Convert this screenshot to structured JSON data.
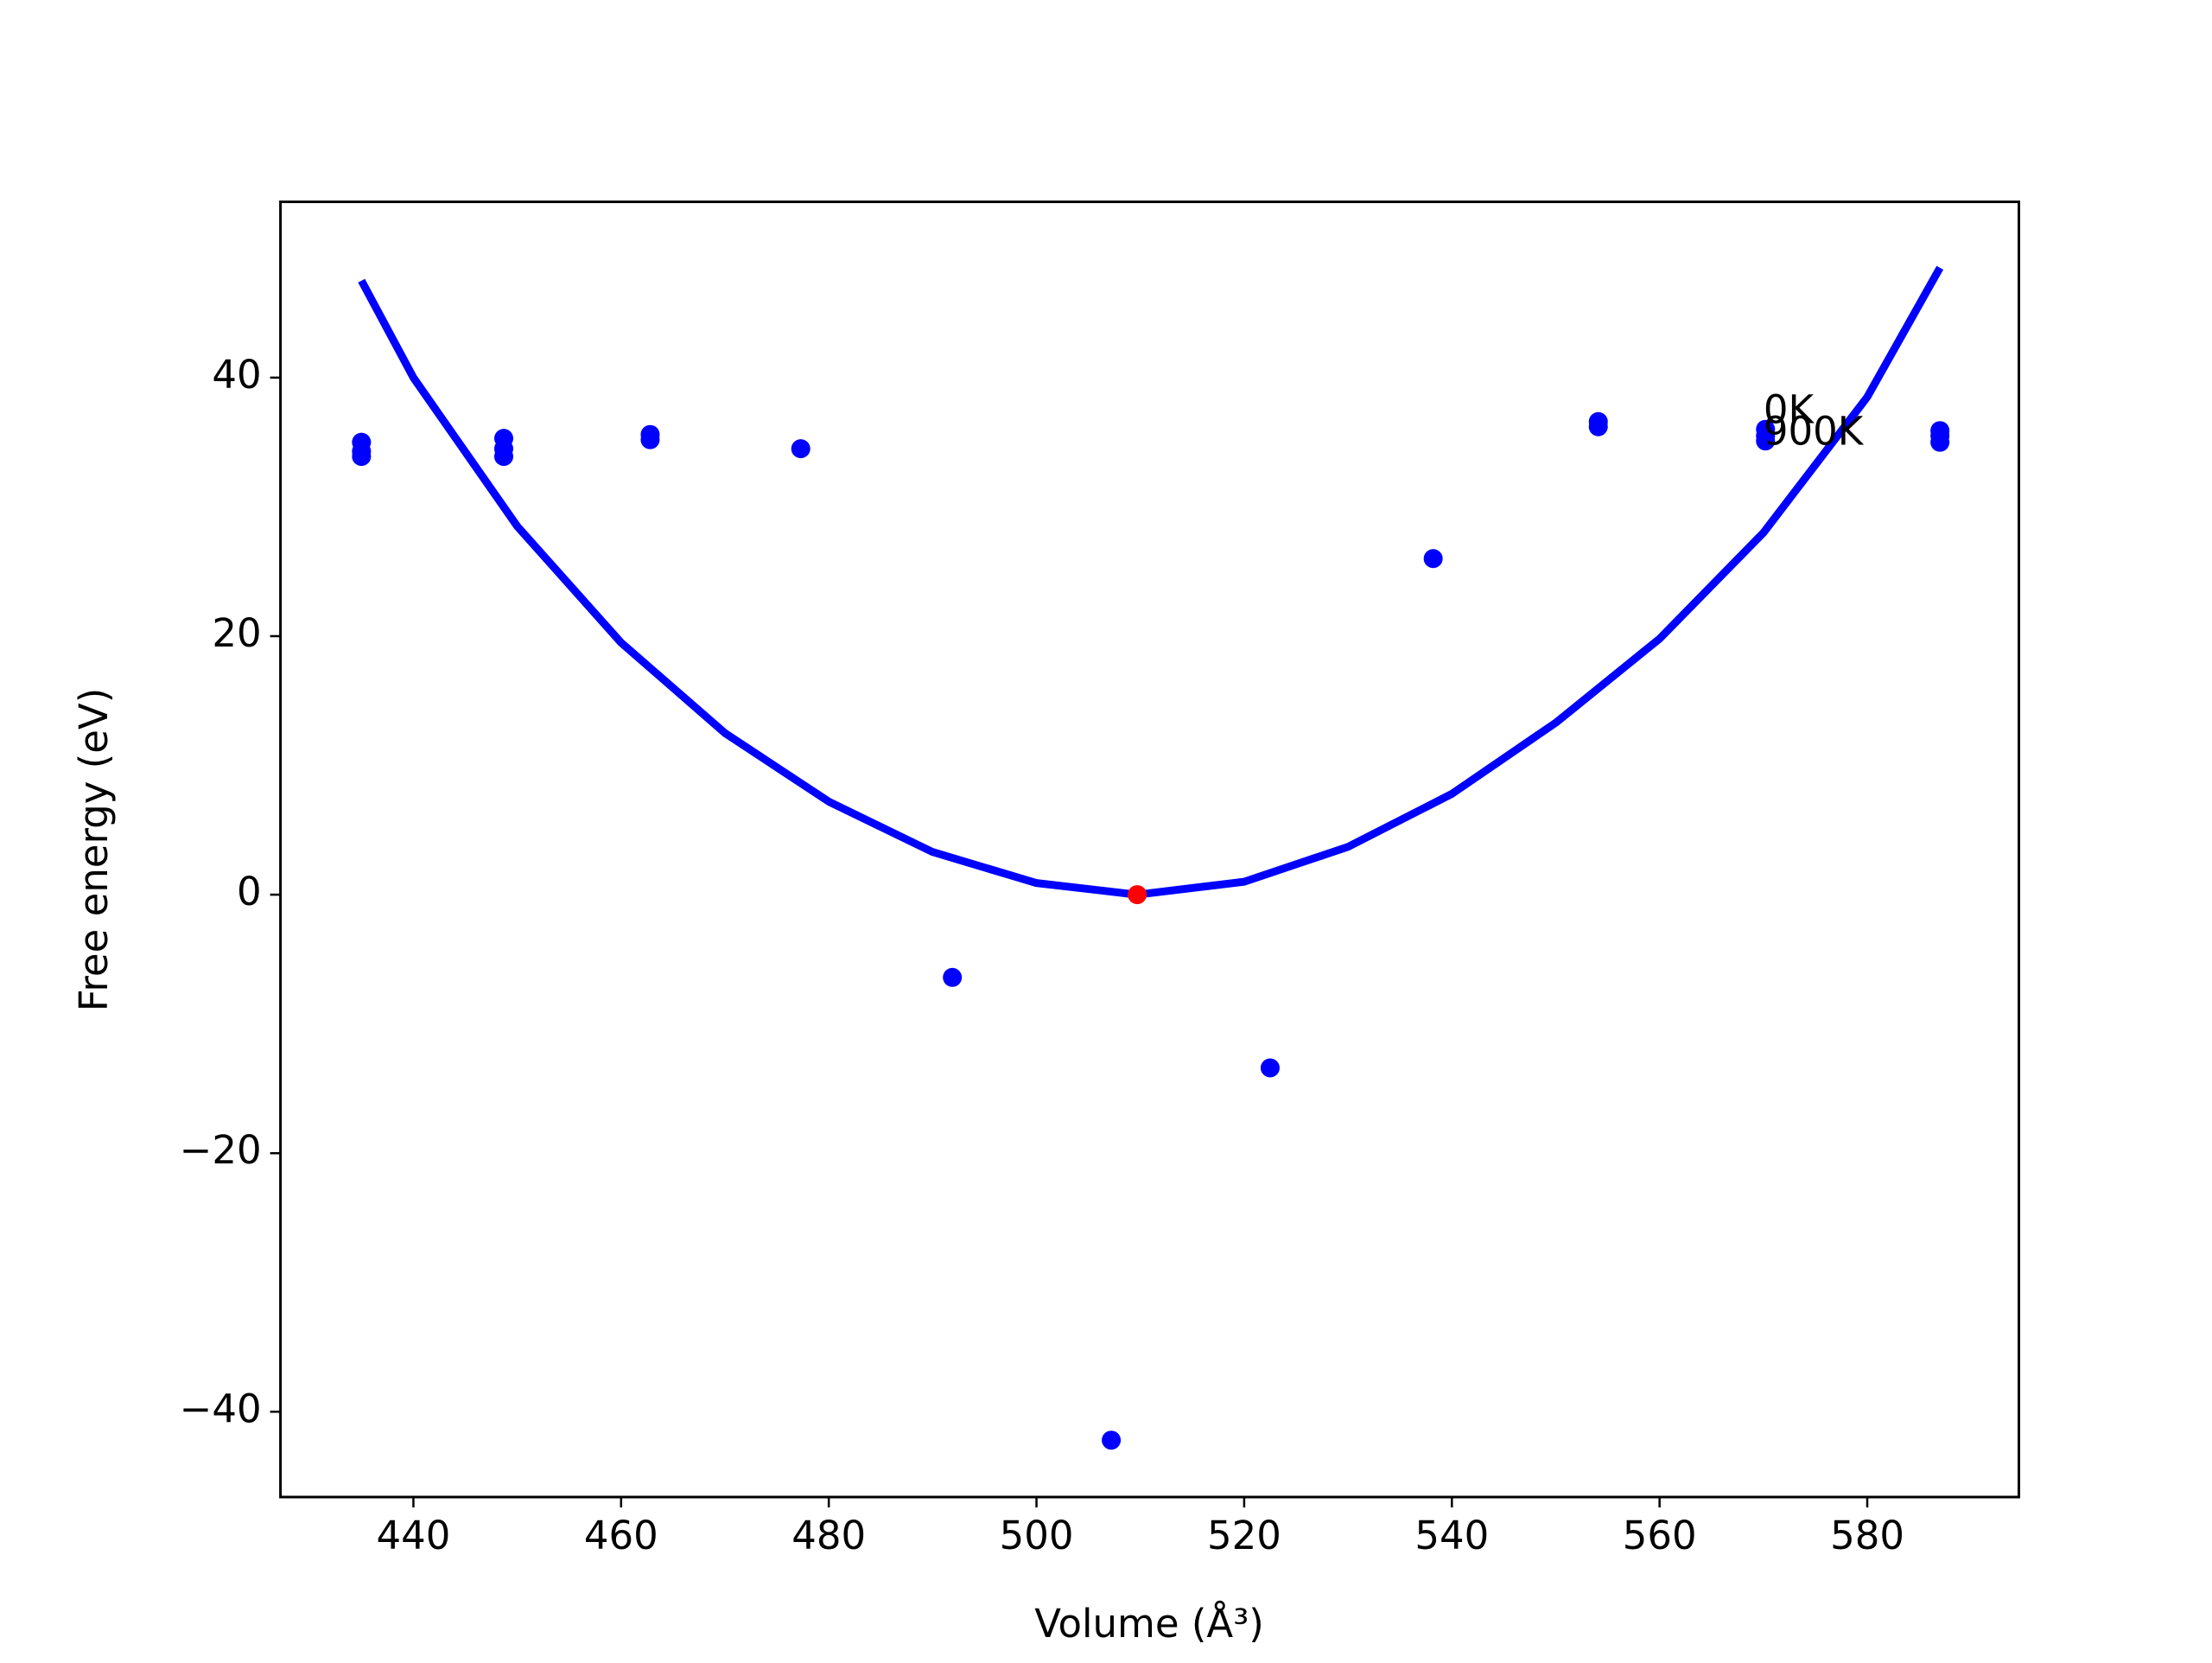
{
  "chart_data": {
    "type": "scatter",
    "xlabel": "Volume (Å³)",
    "ylabel": "Free energy (eV)",
    "xlim": [
      427.2,
      594.6
    ],
    "ylim": [
      -46.6,
      53.6
    ],
    "xticks": [
      440,
      460,
      480,
      500,
      520,
      540,
      560,
      580
    ],
    "yticks": [
      {
        "value": -40,
        "label": "−40"
      },
      {
        "value": -20,
        "label": "−20"
      },
      0,
      20,
      40
    ],
    "series": [
      {
        "type": "line",
        "color": "#0000ff",
        "x": [
          435,
          440,
          450,
          460,
          470,
          480,
          490,
          500,
          509.7,
          520,
          530,
          540,
          550,
          560,
          570,
          580,
          587
        ],
        "values": [
          47.5,
          40,
          28.5,
          19.5,
          12.5,
          7.2,
          3.3,
          0.9,
          0,
          1,
          3.7,
          7.8,
          13.3,
          19.8,
          28,
          38.5,
          48.5
        ]
      },
      {
        "type": "scatter",
        "color": "#0000ff",
        "x": [
          435,
          435,
          435,
          448.7,
          448.7,
          448.7,
          462.8,
          462.8,
          477.3,
          491.9,
          507.2,
          522.5,
          538.2,
          554.1,
          554.1,
          570.2,
          570.2,
          570.2,
          587,
          587,
          587
        ],
        "values": [
          35.0,
          34.3,
          33.9,
          35.3,
          34.5,
          33.9,
          35.6,
          35.2,
          34.5,
          -6.4,
          -42.2,
          -13.4,
          26.0,
          36.6,
          36.2,
          36.0,
          35.5,
          35.1,
          35.9,
          35.5,
          35.0
        ]
      },
      {
        "type": "scatter",
        "color": "#ff0000",
        "x": [
          509.7
        ],
        "values": [
          0
        ]
      }
    ],
    "annotations": [
      {
        "text": "0K",
        "x": 570,
        "y": 37.3
      },
      {
        "text": "900K",
        "x": 570,
        "y": 35.6
      }
    ]
  }
}
